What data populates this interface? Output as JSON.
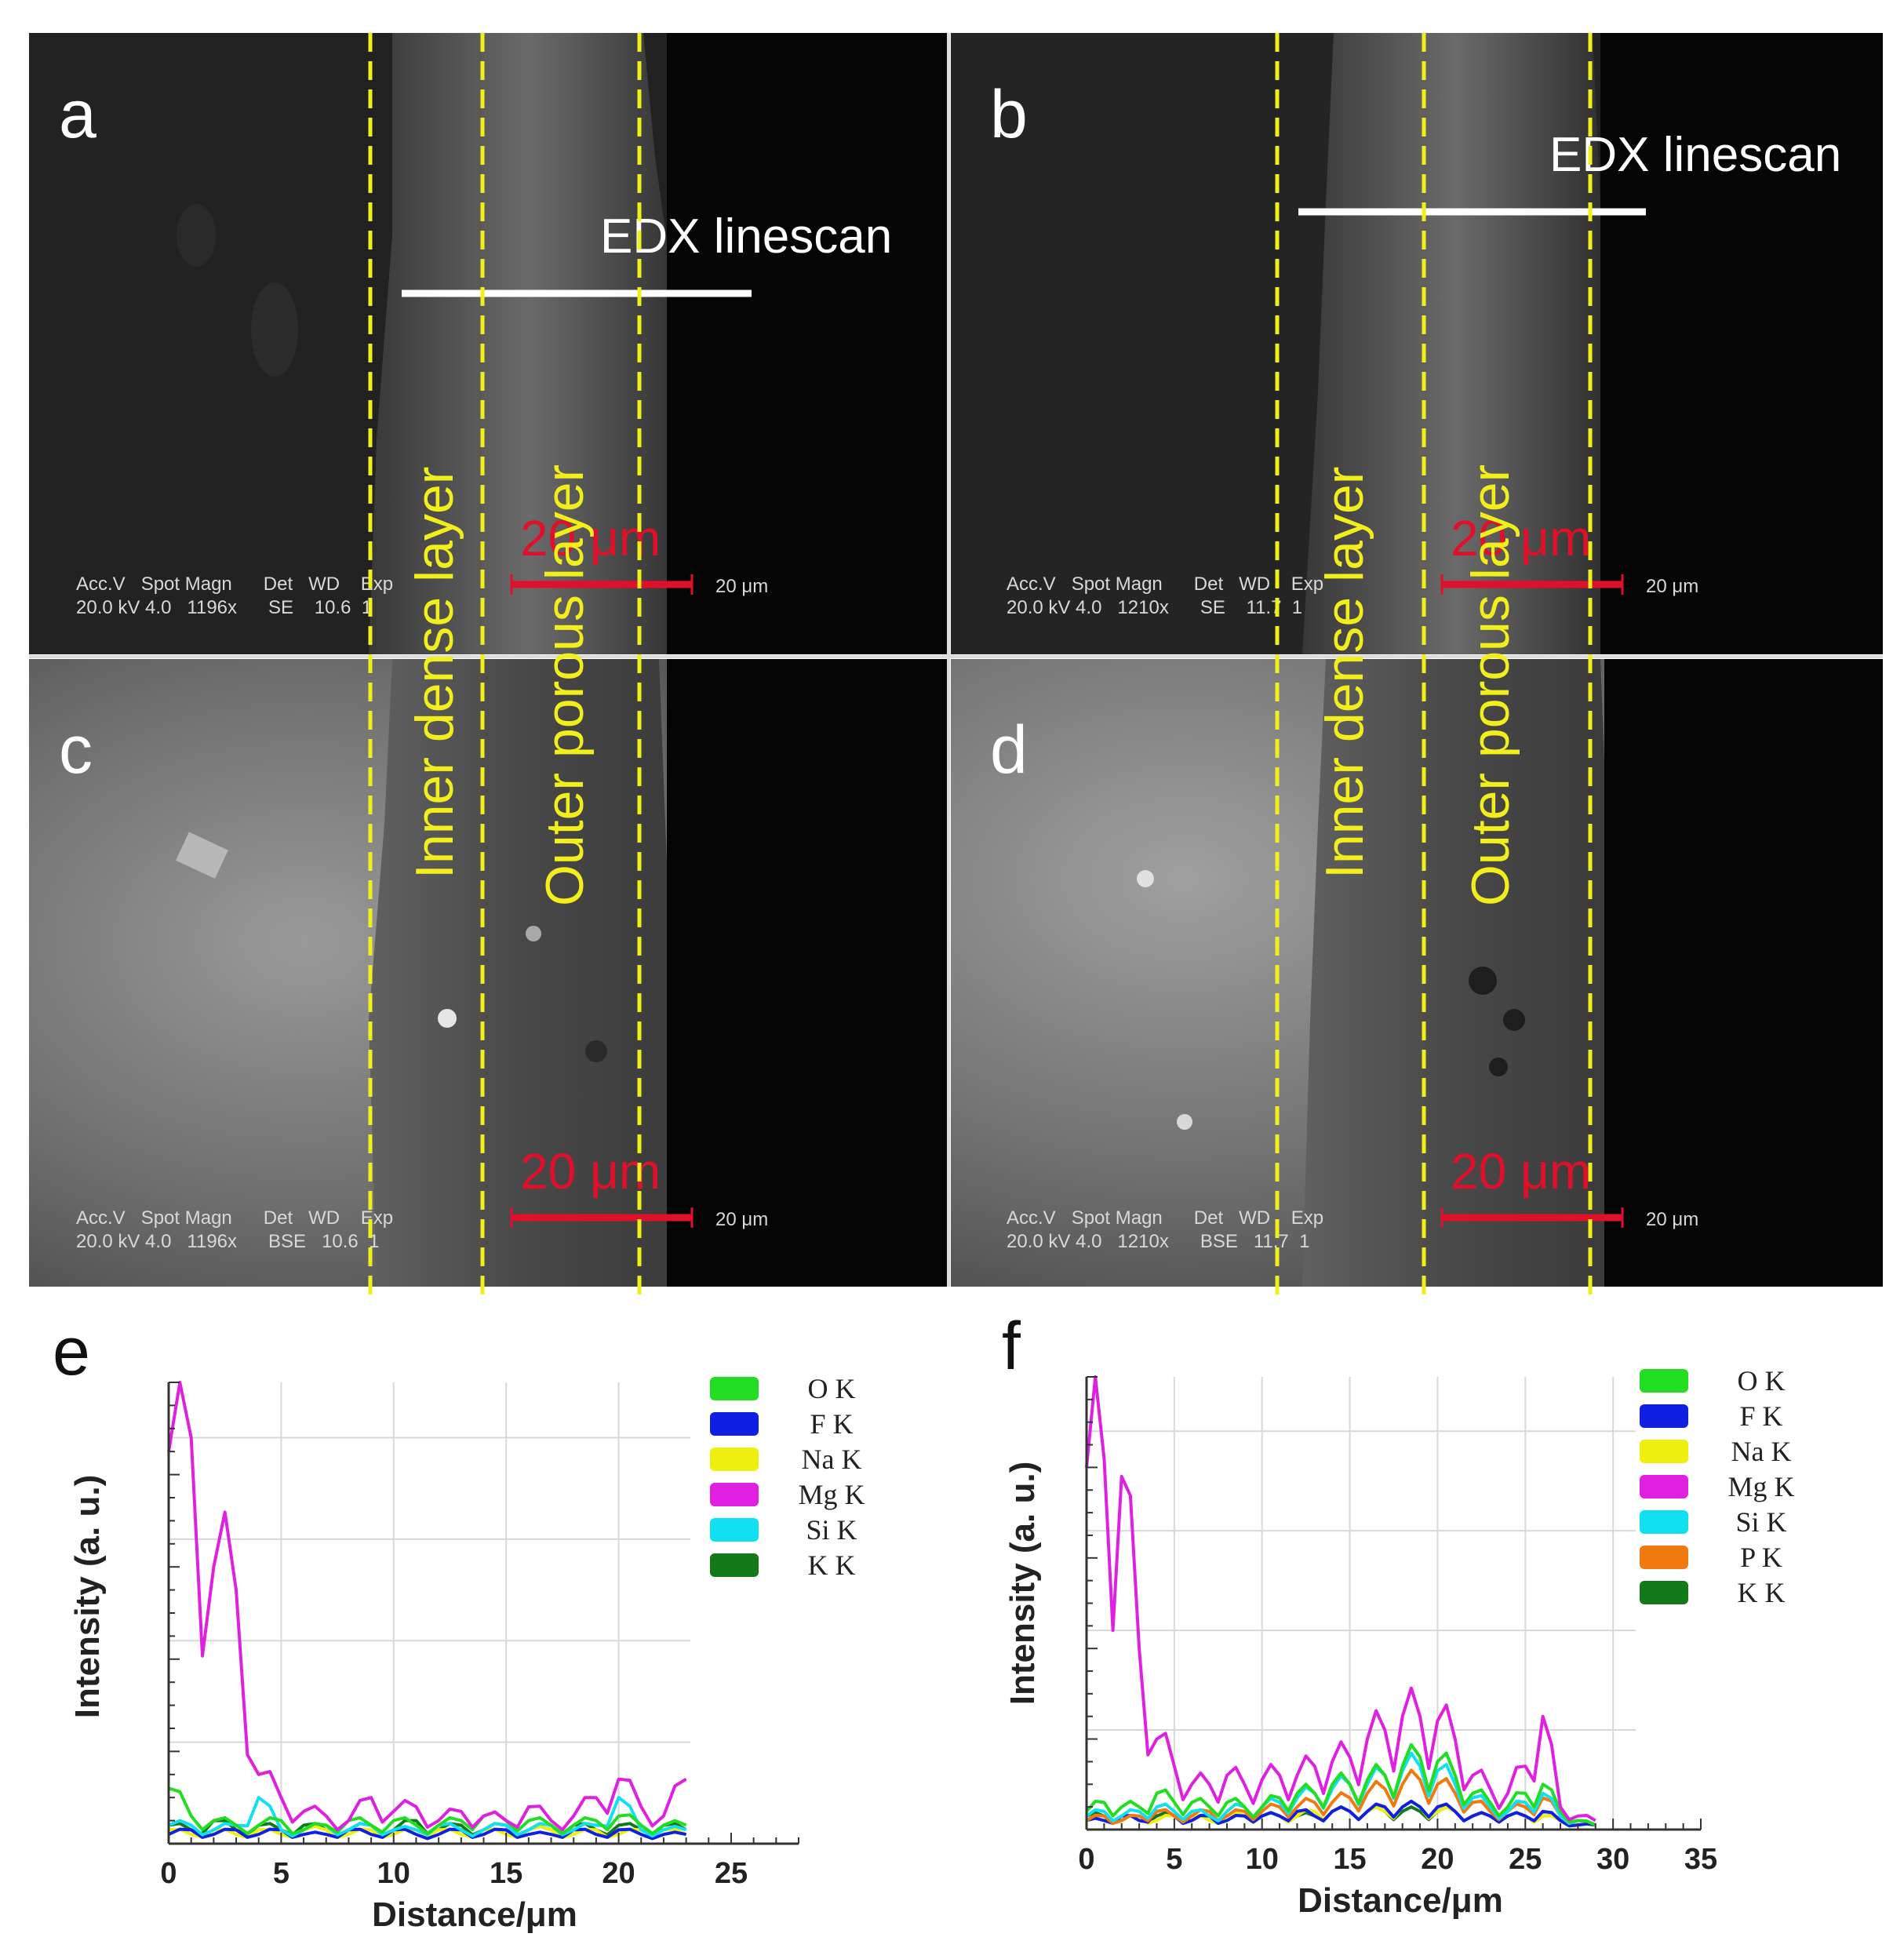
{
  "sem": {
    "panels": [
      {
        "letter": "a",
        "edx_label": "EDX linescan",
        "scalebar_label": "20 μm",
        "info_header": "Acc.V   Spot Magn      Det   WD    Exp",
        "info_values": "20.0 kV 4.0   1196x      SE    10.6  1",
        "micron_tag": "20 μm"
      },
      {
        "letter": "b",
        "edx_label": "EDX linescan",
        "scalebar_label": "20 μm",
        "info_header": "Acc.V   Spot Magn      Det   WD    Exp",
        "info_values": "20.0 kV 4.0   1210x      SE    11.7  1",
        "micron_tag": "20 μm"
      },
      {
        "letter": "c",
        "scalebar_label": "20 μm",
        "info_header": "Acc.V   Spot Magn      Det   WD    Exp",
        "info_values": "20.0 kV 4.0   1196x      BSE   10.6  1",
        "micron_tag": "20 μm"
      },
      {
        "letter": "d",
        "scalebar_label": "20 μm",
        "info_header": "Acc.V   Spot Magn      Det   WD    Exp",
        "info_values": "20.0 kV 4.0   1210x      BSE   11.7  1",
        "micron_tag": "20 μm"
      }
    ],
    "layer_labels": {
      "inner": "Inner dense layer",
      "outer": "Outer porous layer"
    }
  },
  "colors": {
    "guide_yellow": "#f2ee1c",
    "scalebar_red": "#e0102a",
    "O K": "#22dd22",
    "F K": "#1020e0",
    "Na K": "#f0f010",
    "Mg K": "#e020e0",
    "Si K": "#10e0f0",
    "P K": "#f07a10",
    "K K": "#137a1a"
  },
  "chart_data": [
    {
      "panel": "e",
      "type": "line",
      "xlabel": "Distance/μm",
      "ylabel": "Intensity (a. u.)",
      "xlim": [
        0,
        28
      ],
      "xticks": [
        0,
        5,
        10,
        15,
        20,
        25
      ],
      "grid": true,
      "legend": "top-right",
      "legend_entries": [
        "O K",
        "F K",
        "Na K",
        "Mg K",
        "Si K",
        "K K"
      ],
      "x": [
        0,
        1,
        2,
        3,
        4,
        5,
        6,
        7,
        8,
        9,
        10,
        11,
        12,
        13,
        14,
        15,
        16,
        17,
        18,
        19,
        20,
        21,
        22,
        23
      ],
      "series": [
        {
          "name": "Mg K",
          "values": [
            85,
            88,
            60,
            55,
            15,
            10,
            7,
            6,
            5,
            10,
            7,
            8,
            5,
            7,
            6,
            5,
            8,
            5,
            6,
            10,
            14,
            8,
            6,
            14
          ]
        },
        {
          "name": "O K",
          "values": [
            12,
            6,
            5,
            4,
            4,
            5,
            3,
            4,
            5,
            4,
            5,
            4,
            4,
            5,
            6,
            5,
            5,
            4,
            4,
            5,
            6,
            4,
            4,
            4
          ]
        },
        {
          "name": "Si K",
          "values": [
            4,
            4,
            3,
            4,
            10,
            3,
            3,
            4,
            3,
            4,
            3,
            3,
            4,
            3,
            3,
            4,
            3,
            4,
            3,
            4,
            10,
            3,
            3,
            3
          ]
        },
        {
          "name": "F K",
          "values": [
            2,
            3,
            2,
            3,
            2,
            3,
            2,
            2,
            3,
            2,
            3,
            2,
            2,
            3,
            2,
            3,
            2,
            2,
            3,
            2,
            3,
            2,
            2,
            2
          ]
        },
        {
          "name": "Na K",
          "values": [
            3,
            2,
            3,
            2,
            3,
            2,
            3,
            3,
            2,
            3,
            2,
            3,
            3,
            2,
            3,
            2,
            3,
            3,
            2,
            3,
            2,
            3,
            3,
            2
          ]
        },
        {
          "name": "K K",
          "values": [
            4,
            3,
            5,
            3,
            4,
            3,
            4,
            3,
            3,
            4,
            3,
            5,
            3,
            4,
            3,
            4,
            3,
            3,
            4,
            3,
            4,
            3,
            4,
            3
          ]
        }
      ]
    },
    {
      "panel": "f",
      "type": "line",
      "xlabel": "Distance/μm",
      "ylabel": "Intensity (a. u.)",
      "xlim": [
        0,
        35
      ],
      "xticks": [
        0,
        5,
        10,
        15,
        20,
        25,
        30,
        35
      ],
      "grid": true,
      "legend": "top-right",
      "legend_entries": [
        "O K",
        "F K",
        "Na K",
        "Mg K",
        "Si K",
        "P K",
        "K K"
      ],
      "x": [
        0,
        1,
        2,
        3,
        4,
        5,
        6,
        7,
        8,
        9,
        10,
        11,
        12,
        13,
        14,
        15,
        16,
        17,
        18,
        19,
        20,
        21,
        22,
        23,
        24,
        25,
        26,
        27,
        28,
        29
      ],
      "series": [
        {
          "name": "Mg K",
          "values": [
            80,
            82,
            78,
            40,
            20,
            14,
            10,
            10,
            12,
            10,
            11,
            12,
            12,
            14,
            15,
            16,
            20,
            22,
            25,
            25,
            24,
            20,
            12,
            9,
            8,
            14,
            25,
            5,
            3,
            2
          ]
        },
        {
          "name": "O K",
          "values": [
            4,
            6,
            5,
            5,
            8,
            6,
            6,
            5,
            6,
            5,
            5,
            7,
            8,
            8,
            10,
            10,
            11,
            12,
            14,
            16,
            15,
            12,
            8,
            6,
            5,
            8,
            10,
            4,
            2,
            1
          ]
        },
        {
          "name": "Si K",
          "values": [
            3,
            4,
            3,
            4,
            5,
            4,
            4,
            3,
            4,
            5,
            5,
            6,
            7,
            8,
            9,
            10,
            10,
            12,
            13,
            14,
            13,
            10,
            7,
            5,
            4,
            6,
            8,
            3,
            2,
            1
          ]
        },
        {
          "name": "P K",
          "values": [
            2,
            3,
            2,
            3,
            4,
            3,
            3,
            4,
            3,
            4,
            4,
            5,
            5,
            6,
            6,
            7,
            8,
            9,
            10,
            11,
            10,
            8,
            6,
            4,
            4,
            5,
            7,
            3,
            2,
            1
          ]
        },
        {
          "name": "F K",
          "values": [
            2,
            2,
            3,
            2,
            4,
            3,
            2,
            3,
            2,
            3,
            3,
            3,
            4,
            3,
            4,
            4,
            4,
            5,
            5,
            5,
            5,
            4,
            3,
            3,
            3,
            3,
            4,
            2,
            1,
            1
          ]
        },
        {
          "name": "Na K",
          "values": [
            2,
            3,
            2,
            3,
            2,
            3,
            3,
            2,
            3,
            3,
            3,
            3,
            3,
            4,
            4,
            4,
            4,
            4,
            5,
            5,
            4,
            4,
            3,
            3,
            3,
            3,
            3,
            2,
            1,
            1
          ]
        },
        {
          "name": "K K",
          "values": [
            3,
            3,
            2,
            3,
            3,
            3,
            2,
            3,
            3,
            3,
            3,
            3,
            3,
            3,
            4,
            4,
            4,
            4,
            4,
            4,
            4,
            4,
            3,
            3,
            3,
            3,
            3,
            2,
            1,
            1
          ]
        }
      ]
    }
  ]
}
